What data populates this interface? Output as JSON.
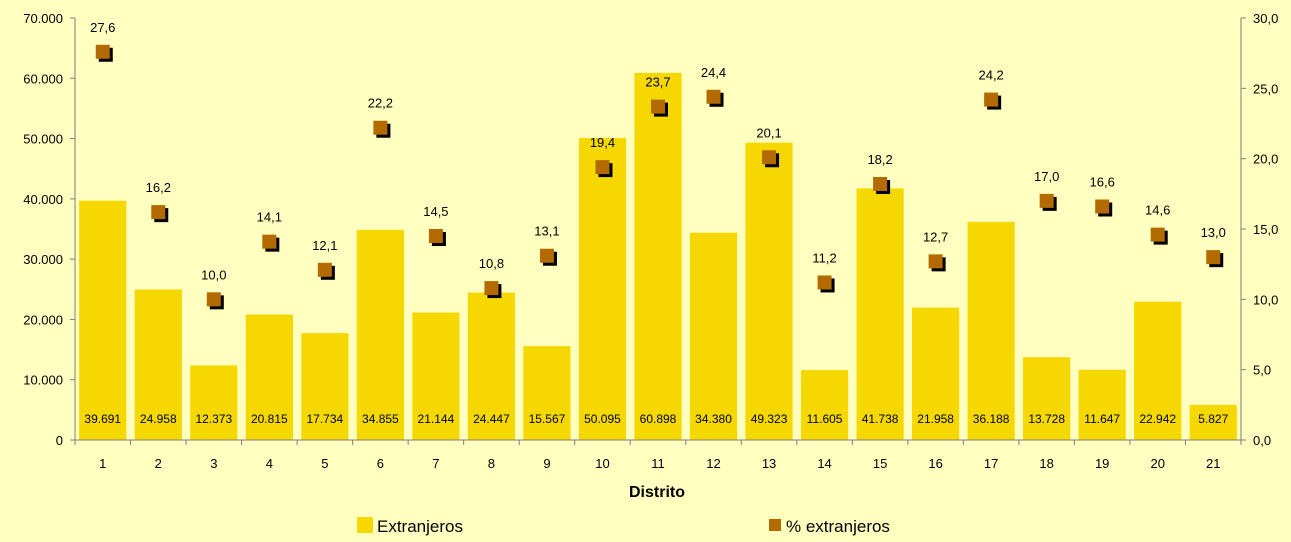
{
  "chart_data": {
    "type": "bar",
    "xlabel": "Distrito",
    "ylabel": "",
    "categories": [
      "1",
      "2",
      "3",
      "4",
      "5",
      "6",
      "7",
      "8",
      "9",
      "10",
      "11",
      "12",
      "13",
      "14",
      "15",
      "16",
      "17",
      "18",
      "19",
      "20",
      "21"
    ],
    "y_left": {
      "min": 0,
      "max": 70000,
      "step": 10000,
      "tick_labels": [
        "0",
        "10.000",
        "20.000",
        "30.000",
        "40.000",
        "50.000",
        "60.000",
        "70.000"
      ]
    },
    "y_right": {
      "min": 0,
      "max": 30,
      "step": 5,
      "tick_labels": [
        "0,0",
        "5,0",
        "10,0",
        "15,0",
        "20,0",
        "25,0",
        "30,0"
      ]
    },
    "series": [
      {
        "name": "Extranjeros",
        "type": "bar",
        "axis": "left",
        "color": "#F5D800",
        "values": [
          39691,
          24958,
          12373,
          20815,
          17734,
          34855,
          21144,
          24447,
          15567,
          50095,
          60898,
          34380,
          49323,
          11605,
          41738,
          21958,
          36188,
          13728,
          11647,
          22942,
          5827
        ],
        "labels": [
          "39.691",
          "24.958",
          "12.373",
          "20.815",
          "17.734",
          "34.855",
          "21.144",
          "24.447",
          "15.567",
          "50.095",
          "60.898",
          "34.380",
          "49.323",
          "11.605",
          "41.738",
          "21.958",
          "36.188",
          "13.728",
          "11.647",
          "22.942",
          "5.827"
        ]
      },
      {
        "name": "% extranjeros",
        "type": "scatter",
        "axis": "right",
        "color": "#B36A00",
        "values": [
          27.6,
          16.2,
          10.0,
          14.1,
          12.1,
          22.2,
          14.5,
          10.8,
          13.1,
          19.4,
          23.7,
          24.4,
          20.1,
          11.2,
          18.2,
          12.7,
          24.2,
          17.0,
          16.6,
          14.6,
          13.0
        ],
        "labels": [
          "27,6",
          "16,2",
          "10,0",
          "14,1",
          "12,1",
          "22,2",
          "14,5",
          "10,8",
          "13,1",
          "19,4",
          "23,7",
          "24,4",
          "20,1",
          "11,2",
          "18,2",
          "12,7",
          "24,2",
          "17,0",
          "16,6",
          "14,6",
          "13,0"
        ]
      }
    ],
    "grid": false,
    "legend_position": "bottom",
    "background_color": "#FFFFC0"
  }
}
